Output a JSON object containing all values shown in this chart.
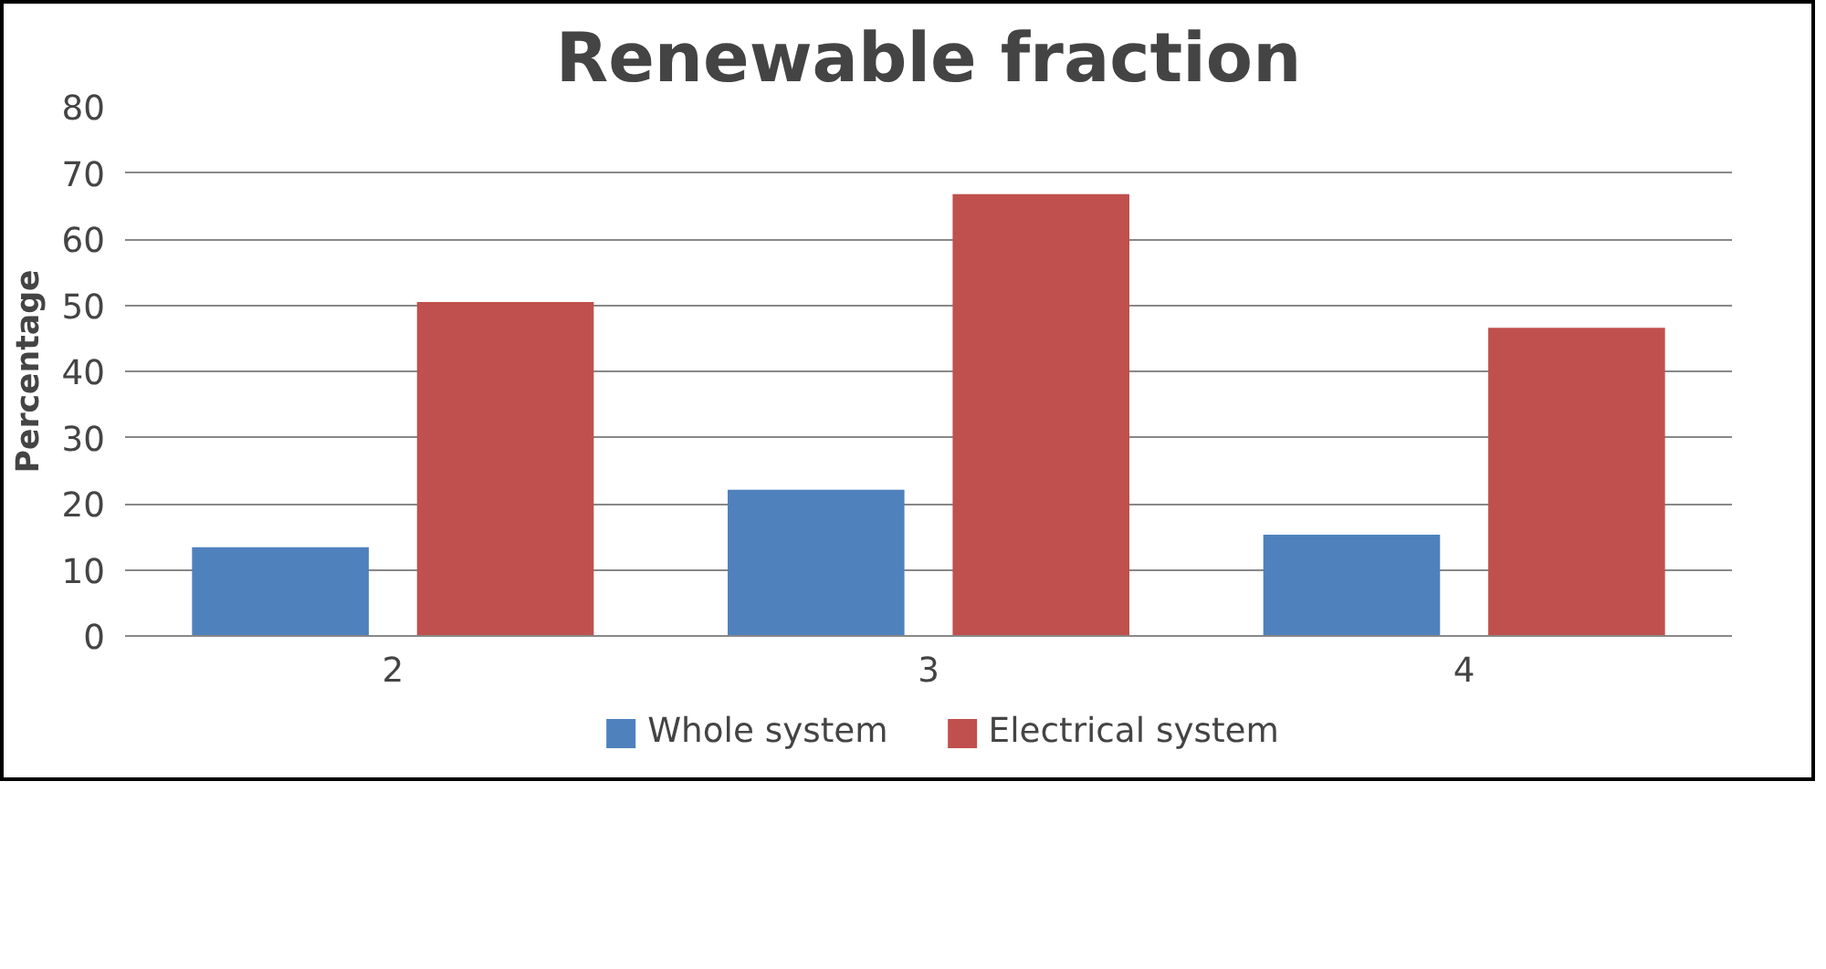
{
  "chart_data": {
    "type": "bar",
    "title": "Renewable fraction",
    "ylabel": "Percentage",
    "categories": [
      "2",
      "3",
      "4"
    ],
    "series": [
      {
        "name": "Whole system",
        "color": "#4f81bd",
        "values": [
          13.4,
          22.1,
          15.3
        ]
      },
      {
        "name": "Electrical system",
        "color": "#c0504d",
        "values": [
          50.5,
          66.8,
          46.6
        ]
      }
    ],
    "ylim": [
      0,
      80
    ],
    "yticks": [
      0,
      10,
      20,
      30,
      40,
      50,
      60,
      70,
      80
    ],
    "grid": "y",
    "legend": "bottom"
  }
}
